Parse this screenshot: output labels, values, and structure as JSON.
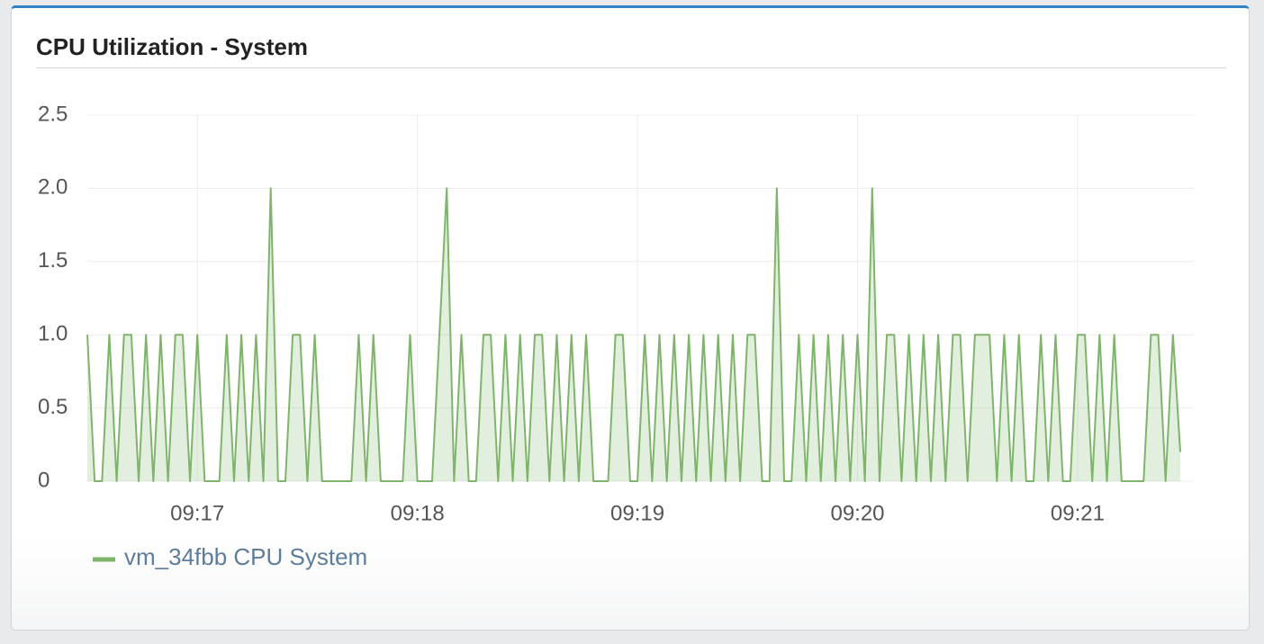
{
  "panel": {
    "title": "CPU Utilization - System"
  },
  "chart_data": {
    "type": "line",
    "series": [
      {
        "name": "vm_34fbb CPU System",
        "color": "#7fb46b",
        "values": [
          1,
          0,
          0,
          1,
          0,
          1,
          1,
          0,
          1,
          0,
          1,
          0,
          1,
          1,
          0,
          1,
          0,
          0,
          0,
          1,
          0,
          1,
          0,
          1,
          0,
          2,
          0,
          0,
          1,
          1,
          0,
          1,
          0,
          0,
          0,
          0,
          0,
          1,
          0,
          1,
          0,
          0,
          0,
          0,
          1,
          0,
          0,
          0,
          1,
          2,
          0,
          1,
          0,
          0,
          1,
          1,
          0,
          1,
          0,
          1,
          0,
          1,
          1,
          0,
          1,
          0,
          1,
          0,
          1,
          0,
          0,
          0,
          1,
          1,
          0,
          0,
          1,
          0,
          1,
          0,
          1,
          0,
          1,
          0,
          1,
          0,
          1,
          0,
          1,
          0,
          1,
          1,
          0,
          0,
          2,
          0,
          0,
          1,
          0,
          1,
          0,
          1,
          0,
          1,
          0,
          1,
          0,
          2,
          0,
          1,
          1,
          0,
          1,
          0,
          1,
          0,
          1,
          0,
          1,
          1,
          0,
          1,
          1,
          1,
          0,
          1,
          0,
          1,
          0,
          0,
          1,
          0,
          1,
          0,
          0,
          1,
          1,
          0,
          1,
          0,
          1,
          0,
          0,
          0,
          0,
          1,
          1,
          0,
          1,
          0.2
        ]
      }
    ],
    "xlim": [
      0,
      149
    ],
    "xticks": [
      {
        "value": 15,
        "label": "09:17"
      },
      {
        "value": 45,
        "label": "09:18"
      },
      {
        "value": 75,
        "label": "09:19"
      },
      {
        "value": 105,
        "label": "09:20"
      },
      {
        "value": 135,
        "label": "09:21"
      }
    ],
    "ylim": [
      0,
      2.5
    ],
    "yticks": [
      0,
      0.5,
      {
        "value": 1,
        "label": "1.0"
      },
      1.5,
      {
        "value": 2,
        "label": "2.0"
      },
      2.5
    ],
    "grid": true,
    "fill": true
  }
}
